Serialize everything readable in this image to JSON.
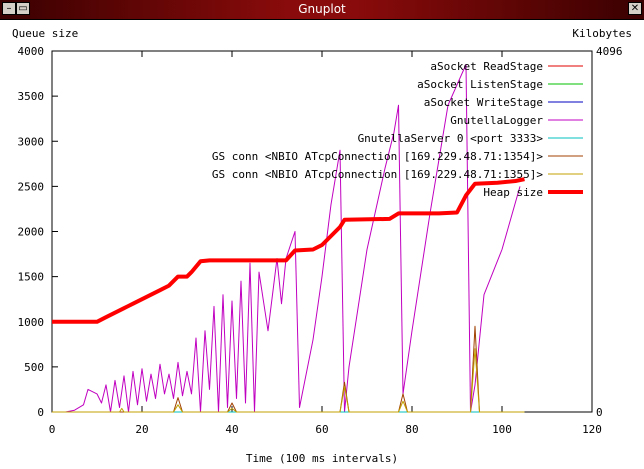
{
  "window": {
    "title": "Gnuplot",
    "menu_icon": "window-menu-icon",
    "minimize_icon": "minimize-icon",
    "close_icon": "close-icon",
    "menu_glyph": "–",
    "minimize_glyph": "▭",
    "close_glyph": "✕"
  },
  "chart_data": {
    "type": "line",
    "title": "",
    "xlabel": "Time (100 ms intervals)",
    "ylabel": "Queue size",
    "y2label": "Kilobytes",
    "y2_tick_label": "4096",
    "xlim": [
      0,
      120
    ],
    "ylim": [
      0,
      4000
    ],
    "x_ticks": [
      0,
      20,
      40,
      60,
      80,
      100,
      120
    ],
    "y_ticks": [
      0,
      500,
      1000,
      1500,
      2000,
      2500,
      3000,
      3500,
      4000
    ],
    "grid": false,
    "legend_position": "top-right",
    "series": [
      {
        "name": "aSocket ReadStage",
        "color": "#e00000",
        "width": 1,
        "points": [
          [
            0,
            0
          ],
          [
            105,
            0
          ]
        ]
      },
      {
        "name": "aSocket ListenStage",
        "color": "#00c000",
        "width": 1,
        "points": [
          [
            0,
            0
          ],
          [
            105,
            0
          ]
        ]
      },
      {
        "name": "aSocket WriteStage",
        "color": "#0000c0",
        "width": 1,
        "points": [
          [
            0,
            0
          ],
          [
            105,
            0
          ]
        ]
      },
      {
        "name": "GnutellaLogger",
        "color": "#c000c0",
        "width": 1,
        "points": [
          [
            3,
            0
          ],
          [
            5,
            20
          ],
          [
            7,
            80
          ],
          [
            8,
            250
          ],
          [
            10,
            200
          ],
          [
            11,
            100
          ],
          [
            12,
            300
          ],
          [
            13,
            0
          ],
          [
            14,
            350
          ],
          [
            15,
            50
          ],
          [
            16,
            400
          ],
          [
            17,
            0
          ],
          [
            18,
            450
          ],
          [
            19,
            80
          ],
          [
            20,
            480
          ],
          [
            21,
            120
          ],
          [
            22,
            420
          ],
          [
            23,
            150
          ],
          [
            24,
            530
          ],
          [
            25,
            200
          ],
          [
            26,
            420
          ],
          [
            27,
            150
          ],
          [
            28,
            550
          ],
          [
            29,
            180
          ],
          [
            30,
            450
          ],
          [
            31,
            200
          ],
          [
            32,
            820
          ],
          [
            33,
            0
          ],
          [
            34,
            900
          ],
          [
            35,
            250
          ],
          [
            36,
            1170
          ],
          [
            37,
            0
          ],
          [
            38,
            1300
          ],
          [
            39,
            50
          ],
          [
            40,
            1230
          ],
          [
            41,
            150
          ],
          [
            42,
            1450
          ],
          [
            43,
            100
          ],
          [
            44,
            1650
          ],
          [
            45,
            0
          ],
          [
            46,
            1550
          ],
          [
            48,
            900
          ],
          [
            50,
            1700
          ],
          [
            51,
            1200
          ],
          [
            52,
            1700
          ],
          [
            53,
            1850
          ],
          [
            54,
            2000
          ],
          [
            55,
            50
          ],
          [
            58,
            800
          ],
          [
            60,
            1500
          ],
          [
            62,
            2300
          ],
          [
            64,
            2900
          ],
          [
            65,
            0
          ],
          [
            66,
            500
          ],
          [
            70,
            1800
          ],
          [
            74,
            2700
          ],
          [
            76,
            3100
          ],
          [
            77,
            3400
          ],
          [
            78,
            200
          ],
          [
            80,
            900
          ],
          [
            84,
            2200
          ],
          [
            88,
            3400
          ],
          [
            92,
            3850
          ],
          [
            93,
            0
          ],
          [
            94,
            300
          ],
          [
            96,
            1300
          ],
          [
            100,
            1800
          ],
          [
            104,
            2500
          ]
        ]
      },
      {
        "name": "GnutellaServer 0 <port 3333>",
        "color": "#00c0c0",
        "width": 1,
        "points": [
          [
            0,
            0
          ],
          [
            105,
            0
          ]
        ]
      },
      {
        "name": "GS conn <NBIO ATcpConnection [169.229.48.71:1354]>",
        "color": "#a04000",
        "width": 1,
        "points": [
          [
            0,
            0
          ],
          [
            27,
            0
          ],
          [
            28,
            160
          ],
          [
            29,
            0
          ],
          [
            39,
            0
          ],
          [
            40,
            100
          ],
          [
            41,
            0
          ],
          [
            64,
            0
          ],
          [
            65,
            330
          ],
          [
            66,
            0
          ],
          [
            77,
            0
          ],
          [
            78,
            200
          ],
          [
            79,
            0
          ],
          [
            93,
            0
          ],
          [
            94,
            950
          ],
          [
            95,
            0
          ],
          [
            105,
            0
          ]
        ]
      },
      {
        "name": "GS conn <NBIO ATcpConnection [169.229.48.71:1355]>",
        "color": "#c0a000",
        "width": 1,
        "points": [
          [
            0,
            0
          ],
          [
            15,
            0
          ],
          [
            15.5,
            40
          ],
          [
            16,
            0
          ],
          [
            27,
            0
          ],
          [
            28,
            80
          ],
          [
            29,
            0
          ],
          [
            39,
            0
          ],
          [
            40,
            40
          ],
          [
            41,
            0
          ],
          [
            64,
            0
          ],
          [
            65,
            280
          ],
          [
            66,
            0
          ],
          [
            77,
            0
          ],
          [
            78,
            120
          ],
          [
            79,
            0
          ],
          [
            93,
            0
          ],
          [
            94,
            700
          ],
          [
            95,
            0
          ],
          [
            105,
            0
          ]
        ]
      },
      {
        "name": "Heap size",
        "color": "#ff0000",
        "width": 4,
        "points": [
          [
            0,
            1000
          ],
          [
            10,
            1000
          ],
          [
            12,
            1050
          ],
          [
            14,
            1100
          ],
          [
            16,
            1150
          ],
          [
            18,
            1200
          ],
          [
            20,
            1250
          ],
          [
            22,
            1300
          ],
          [
            24,
            1350
          ],
          [
            26,
            1400
          ],
          [
            28,
            1500
          ],
          [
            30,
            1500
          ],
          [
            31,
            1550
          ],
          [
            33,
            1670
          ],
          [
            35,
            1680
          ],
          [
            45,
            1680
          ],
          [
            52,
            1680
          ],
          [
            54,
            1790
          ],
          [
            58,
            1800
          ],
          [
            60,
            1850
          ],
          [
            62,
            1950
          ],
          [
            64,
            2050
          ],
          [
            65,
            2130
          ],
          [
            75,
            2140
          ],
          [
            77,
            2200
          ],
          [
            86,
            2200
          ],
          [
            90,
            2210
          ],
          [
            92,
            2400
          ],
          [
            94,
            2530
          ],
          [
            99,
            2540
          ],
          [
            103,
            2560
          ],
          [
            105,
            2580
          ]
        ]
      }
    ]
  }
}
